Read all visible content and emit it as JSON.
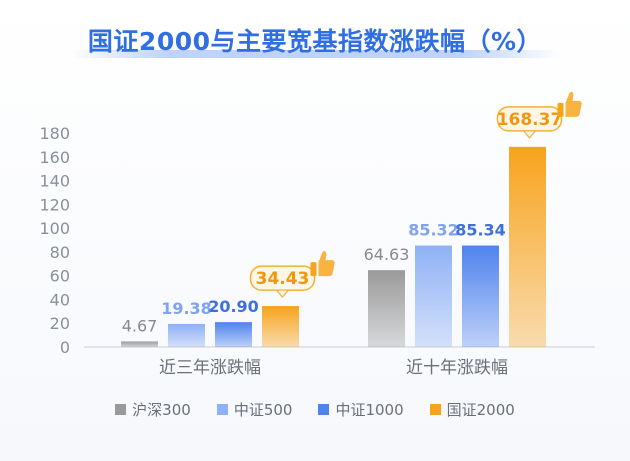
{
  "title": "国证2000与主要宽基指数涨跌幅（%）",
  "colors": {
    "title": "#2f6fe3",
    "axis_text": "#8a8f98",
    "gridline": "#d9dce3"
  },
  "chart_data": {
    "type": "bar",
    "categories": [
      "近三年涨跌幅",
      "近十年涨跌幅"
    ],
    "series": [
      {
        "name": "沪深300",
        "values": [
          4.67,
          64.63
        ],
        "labels": [
          "4.67",
          "64.63"
        ],
        "color": "#9a9a9a",
        "label_color": "#8a8a8a"
      },
      {
        "name": "中证500",
        "values": [
          19.38,
          85.32
        ],
        "labels": [
          "19.38",
          "85.32"
        ],
        "color": "#8fb1f5",
        "label_color": "#7fa3ee"
      },
      {
        "name": "中证1000",
        "values": [
          20.9,
          85.34
        ],
        "labels": [
          "20.90",
          "85.34"
        ],
        "color": "#4f83ee",
        "label_color": "#3f6fd8"
      },
      {
        "name": "国证2000",
        "values": [
          34.43,
          168.37
        ],
        "labels": [
          "34.43",
          "168.37"
        ],
        "color": "#f7a31c",
        "label_color": "#f0980d",
        "highlight": true
      }
    ],
    "yticks": [
      "0",
      "20",
      "40",
      "60",
      "80",
      "100",
      "120",
      "140",
      "160",
      "180"
    ],
    "ylim": [
      0,
      180
    ],
    "legend_position": "bottom",
    "grid": false
  }
}
